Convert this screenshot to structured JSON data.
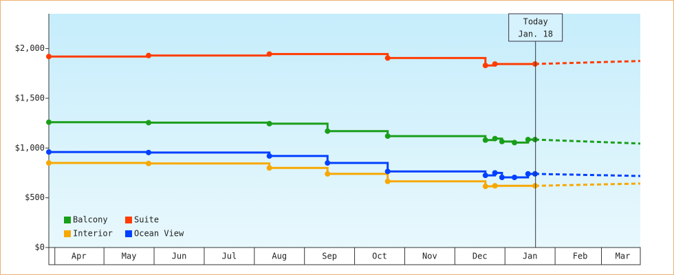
{
  "chart_data": {
    "type": "step",
    "ylim": [
      0,
      2350
    ],
    "yticks": [
      {
        "value": 0,
        "label": "$0"
      },
      {
        "value": 500,
        "label": "$500"
      },
      {
        "value": 1000,
        "label": "$1,000"
      },
      {
        "value": 1500,
        "label": "$1,500"
      },
      {
        "value": 2000,
        "label": "$2,000"
      }
    ],
    "xlim": [
      -0.1,
      11.7
    ],
    "xticks": [
      {
        "value": 0.5,
        "label": "Apr"
      },
      {
        "value": 1.5,
        "label": "May"
      },
      {
        "value": 2.5,
        "label": "Jun"
      },
      {
        "value": 3.5,
        "label": "Jul"
      },
      {
        "value": 4.5,
        "label": "Aug"
      },
      {
        "value": 5.5,
        "label": "Sep"
      },
      {
        "value": 6.5,
        "label": "Oct"
      },
      {
        "value": 7.5,
        "label": "Nov"
      },
      {
        "value": 8.5,
        "label": "Dec"
      },
      {
        "value": 9.5,
        "label": "Jan"
      },
      {
        "value": 10.5,
        "label": "Feb"
      },
      {
        "value": 11.35,
        "label": "Mar"
      }
    ],
    "today": {
      "x": 9.61,
      "label": [
        "Today",
        "Jan. 18"
      ]
    },
    "series": [
      {
        "name": "Balcony",
        "color": "#1a9e1a",
        "x": [
          -0.1,
          1.89,
          4.3,
          5.46,
          6.66,
          8.61,
          8.8,
          8.94,
          9.19,
          9.46,
          9.6
        ],
        "values": [
          1260,
          1255,
          1245,
          1170,
          1120,
          1080,
          1095,
          1065,
          1055,
          1085,
          1085
        ],
        "forecast_x": [
          9.6,
          11.7
        ],
        "forecast": [
          1085,
          1045
        ]
      },
      {
        "name": "Suite",
        "color": "#ff3c00",
        "x": [
          -0.1,
          1.89,
          4.3,
          6.66,
          8.61,
          8.8,
          9.6
        ],
        "values": [
          1920,
          1930,
          1945,
          1905,
          1830,
          1845,
          1845
        ],
        "forecast_x": [
          9.6,
          11.7
        ],
        "forecast": [
          1845,
          1875
        ]
      },
      {
        "name": "Interior",
        "color": "#f7a800",
        "x": [
          -0.1,
          1.89,
          4.3,
          5.46,
          6.66,
          8.61,
          8.8,
          9.6
        ],
        "values": [
          850,
          845,
          800,
          740,
          665,
          615,
          620,
          620
        ],
        "forecast_x": [
          9.6,
          11.7
        ],
        "forecast": [
          620,
          643
        ]
      },
      {
        "name": "Ocean View",
        "color": "#0040ff",
        "x": [
          -0.1,
          1.89,
          4.3,
          5.46,
          6.66,
          8.61,
          8.8,
          8.94,
          9.19,
          9.46,
          9.6
        ],
        "values": [
          960,
          955,
          920,
          850,
          765,
          725,
          750,
          705,
          705,
          740,
          740
        ],
        "forecast_x": [
          9.6,
          11.7
        ],
        "forecast": [
          740,
          719
        ]
      }
    ]
  }
}
